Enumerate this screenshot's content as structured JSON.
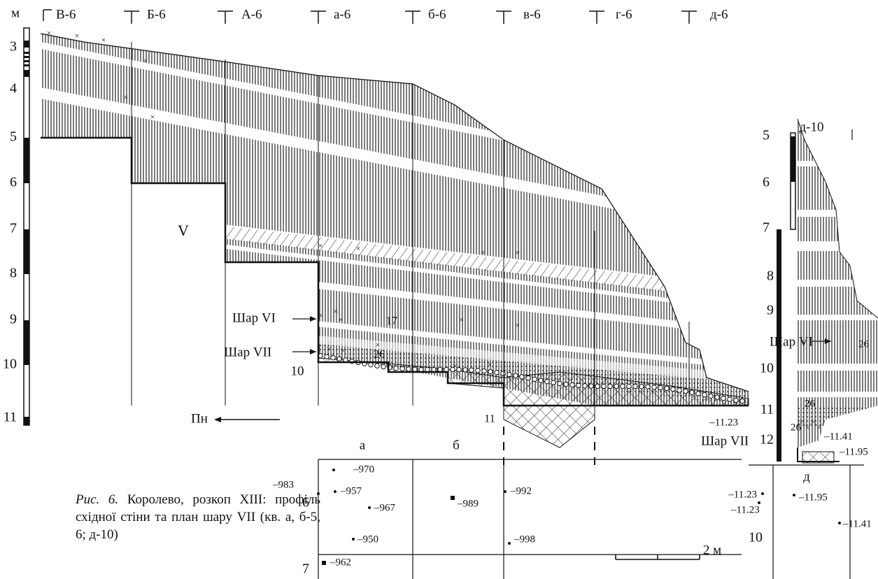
{
  "profile": {
    "depth_unit": "м",
    "depth_labels": [
      "3",
      "4",
      "5",
      "6",
      "7",
      "8",
      "9",
      "10",
      "11"
    ],
    "squares": [
      "В-6",
      "Б-6",
      "А-6",
      "а-6",
      "б-6",
      "в-6",
      "г-6",
      "д-6"
    ],
    "layer_v": "V",
    "layer_vi": "Шар VI",
    "layer_vii": "Шар VII",
    "marks": [
      "17",
      "26",
      "10",
      "11"
    ],
    "north": "Пн"
  },
  "section_d10": {
    "title": "д-10",
    "depth_labels": [
      "5",
      "6",
      "7",
      "8",
      "9",
      "10",
      "11",
      "12"
    ],
    "layer_vi": "Шар VI",
    "layer_vii": "Шар VII",
    "marks": [
      "26",
      "26",
      "26"
    ],
    "elevations": [
      "–11.23",
      "–11.41",
      "–11.95"
    ]
  },
  "plan": {
    "columns": [
      "а",
      "б"
    ],
    "rows": [
      "6",
      "7"
    ],
    "points": [
      "–970",
      "–957",
      "–983",
      "–967",
      "–950",
      "–962",
      "–992",
      "–989",
      "–998"
    ]
  },
  "plan_d10": {
    "column": "д",
    "row": "10",
    "points": [
      "–11.23",
      "–11.23",
      "–11.95",
      "–11.41"
    ]
  },
  "scale_bar": "2 м",
  "caption": {
    "label": "Рис. 6.",
    "text": "Королево, розкоп XIII: профіль східної стіни та план шару VII (кв. а, б-5, 6; д-10)"
  }
}
